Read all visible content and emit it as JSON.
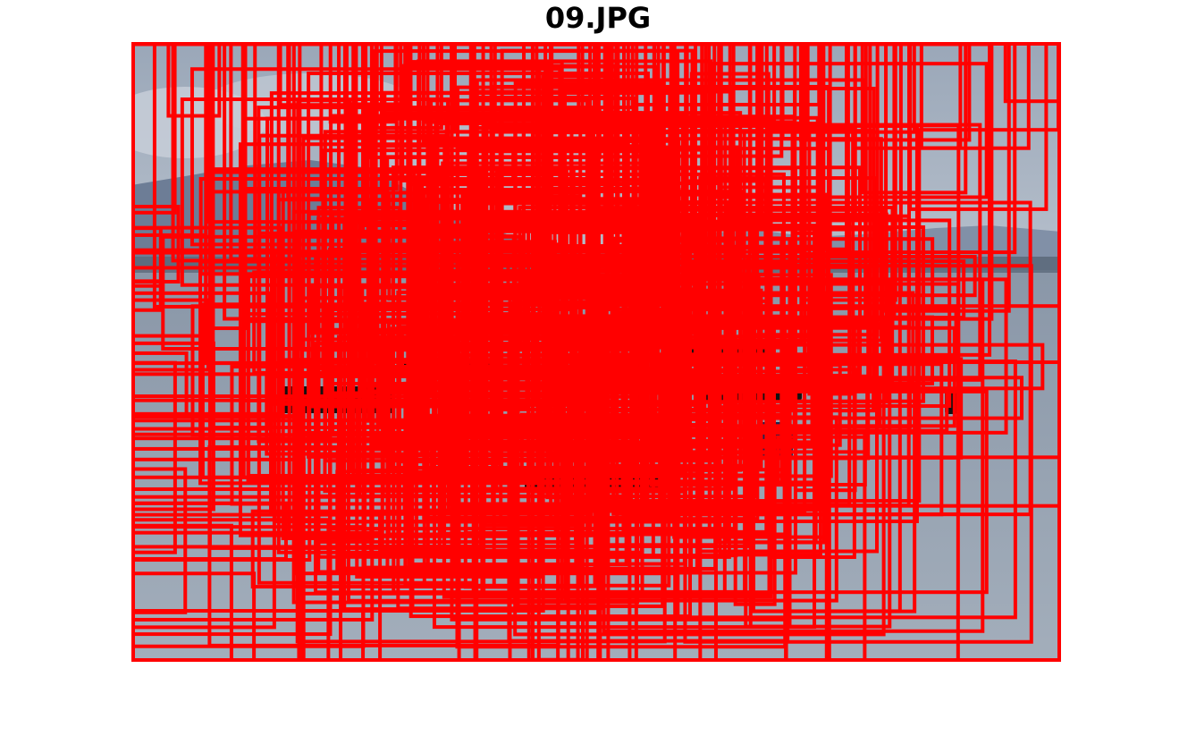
{
  "figure": {
    "title": "09.JPG"
  },
  "photo": {
    "subject": "lake-with-boats",
    "palette": {
      "sky_top": "#9aa7b8",
      "sky_cloud": "#c9d0d9",
      "mountain": "#6d7d96",
      "mountain_far": "#8190a7",
      "shore": "#5c6a7c",
      "water_top": "#8a97a8",
      "water_bottom": "#a3aebb",
      "boat": "#111111"
    }
  },
  "overlay": {
    "box_color": "#ff0000"
  }
}
